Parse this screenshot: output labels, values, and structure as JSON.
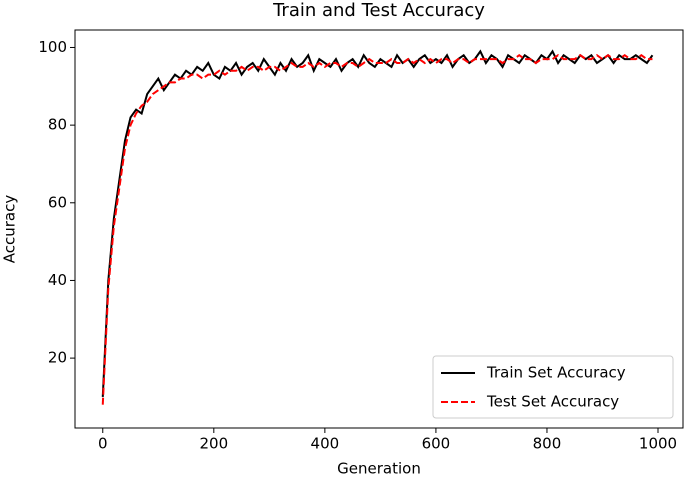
{
  "chart_data": {
    "type": "line",
    "title": "Train and Test Accuracy",
    "x_label": "Generation",
    "y_label": "Accuracy",
    "x": [
      0,
      10,
      20,
      30,
      40,
      50,
      60,
      70,
      80,
      90,
      100,
      110,
      120,
      130,
      140,
      150,
      160,
      170,
      180,
      190,
      200,
      210,
      220,
      230,
      240,
      250,
      260,
      270,
      280,
      290,
      300,
      310,
      320,
      330,
      340,
      350,
      360,
      370,
      380,
      390,
      400,
      410,
      420,
      430,
      440,
      450,
      460,
      470,
      480,
      490,
      500,
      510,
      520,
      530,
      540,
      550,
      560,
      570,
      580,
      590,
      600,
      610,
      620,
      630,
      640,
      650,
      660,
      670,
      680,
      690,
      700,
      710,
      720,
      730,
      740,
      750,
      760,
      770,
      780,
      790,
      800,
      810,
      820,
      830,
      840,
      850,
      860,
      870,
      880,
      890,
      900,
      910,
      920,
      930,
      940,
      950,
      960,
      970,
      980,
      990
    ],
    "series": [
      {
        "name": "Train Set Accuracy",
        "color": "#000000",
        "linestyle": "solid",
        "values": [
          10,
          40,
          56,
          66,
          76,
          82,
          84,
          83,
          88,
          90,
          92,
          89,
          91,
          93,
          92,
          94,
          93,
          95,
          94,
          96,
          93,
          92,
          95,
          94,
          96,
          93,
          95,
          96,
          94,
          97,
          95,
          93,
          96,
          94,
          97,
          95,
          96,
          98,
          94,
          97,
          96,
          95,
          97,
          94,
          96,
          97,
          95,
          98,
          96,
          95,
          97,
          96,
          95,
          98,
          96,
          97,
          95,
          97,
          98,
          96,
          97,
          96,
          98,
          95,
          97,
          98,
          96,
          97,
          99,
          96,
          98,
          97,
          95,
          98,
          97,
          96,
          98,
          97,
          96,
          98,
          97,
          99,
          96,
          98,
          97,
          96,
          98,
          97,
          98,
          96,
          97,
          98,
          96,
          98,
          97,
          97,
          98,
          97,
          96,
          98
        ]
      },
      {
        "name": "Test Set Accuracy",
        "color": "#ff0000",
        "linestyle": "dashed",
        "values": [
          8,
          38,
          54,
          64,
          74,
          80,
          83,
          85,
          86,
          88,
          89,
          90,
          91,
          91,
          92,
          92,
          93,
          93,
          92,
          93,
          93,
          94,
          93,
          94,
          94,
          95,
          94,
          95,
          95,
          94,
          95,
          95,
          94,
          95,
          96,
          95,
          95,
          96,
          95,
          96,
          95,
          96,
          96,
          95,
          96,
          96,
          95,
          96,
          97,
          96,
          96,
          96,
          97,
          96,
          96,
          97,
          96,
          97,
          96,
          97,
          96,
          97,
          97,
          96,
          97,
          97,
          96,
          97,
          97,
          97,
          97,
          97,
          96,
          97,
          97,
          98,
          97,
          97,
          96,
          97,
          97,
          97,
          98,
          97,
          97,
          97,
          98,
          97,
          97,
          98,
          97,
          98,
          97,
          97,
          98,
          97,
          97,
          98,
          97,
          97
        ]
      }
    ],
    "xlim": [
      -50,
      1045
    ],
    "ylim": [
      2,
      104.5
    ],
    "xticks": [
      0,
      200,
      400,
      600,
      800,
      1000
    ],
    "yticks": [
      20,
      40,
      60,
      80,
      100
    ],
    "legend": "lower right"
  }
}
